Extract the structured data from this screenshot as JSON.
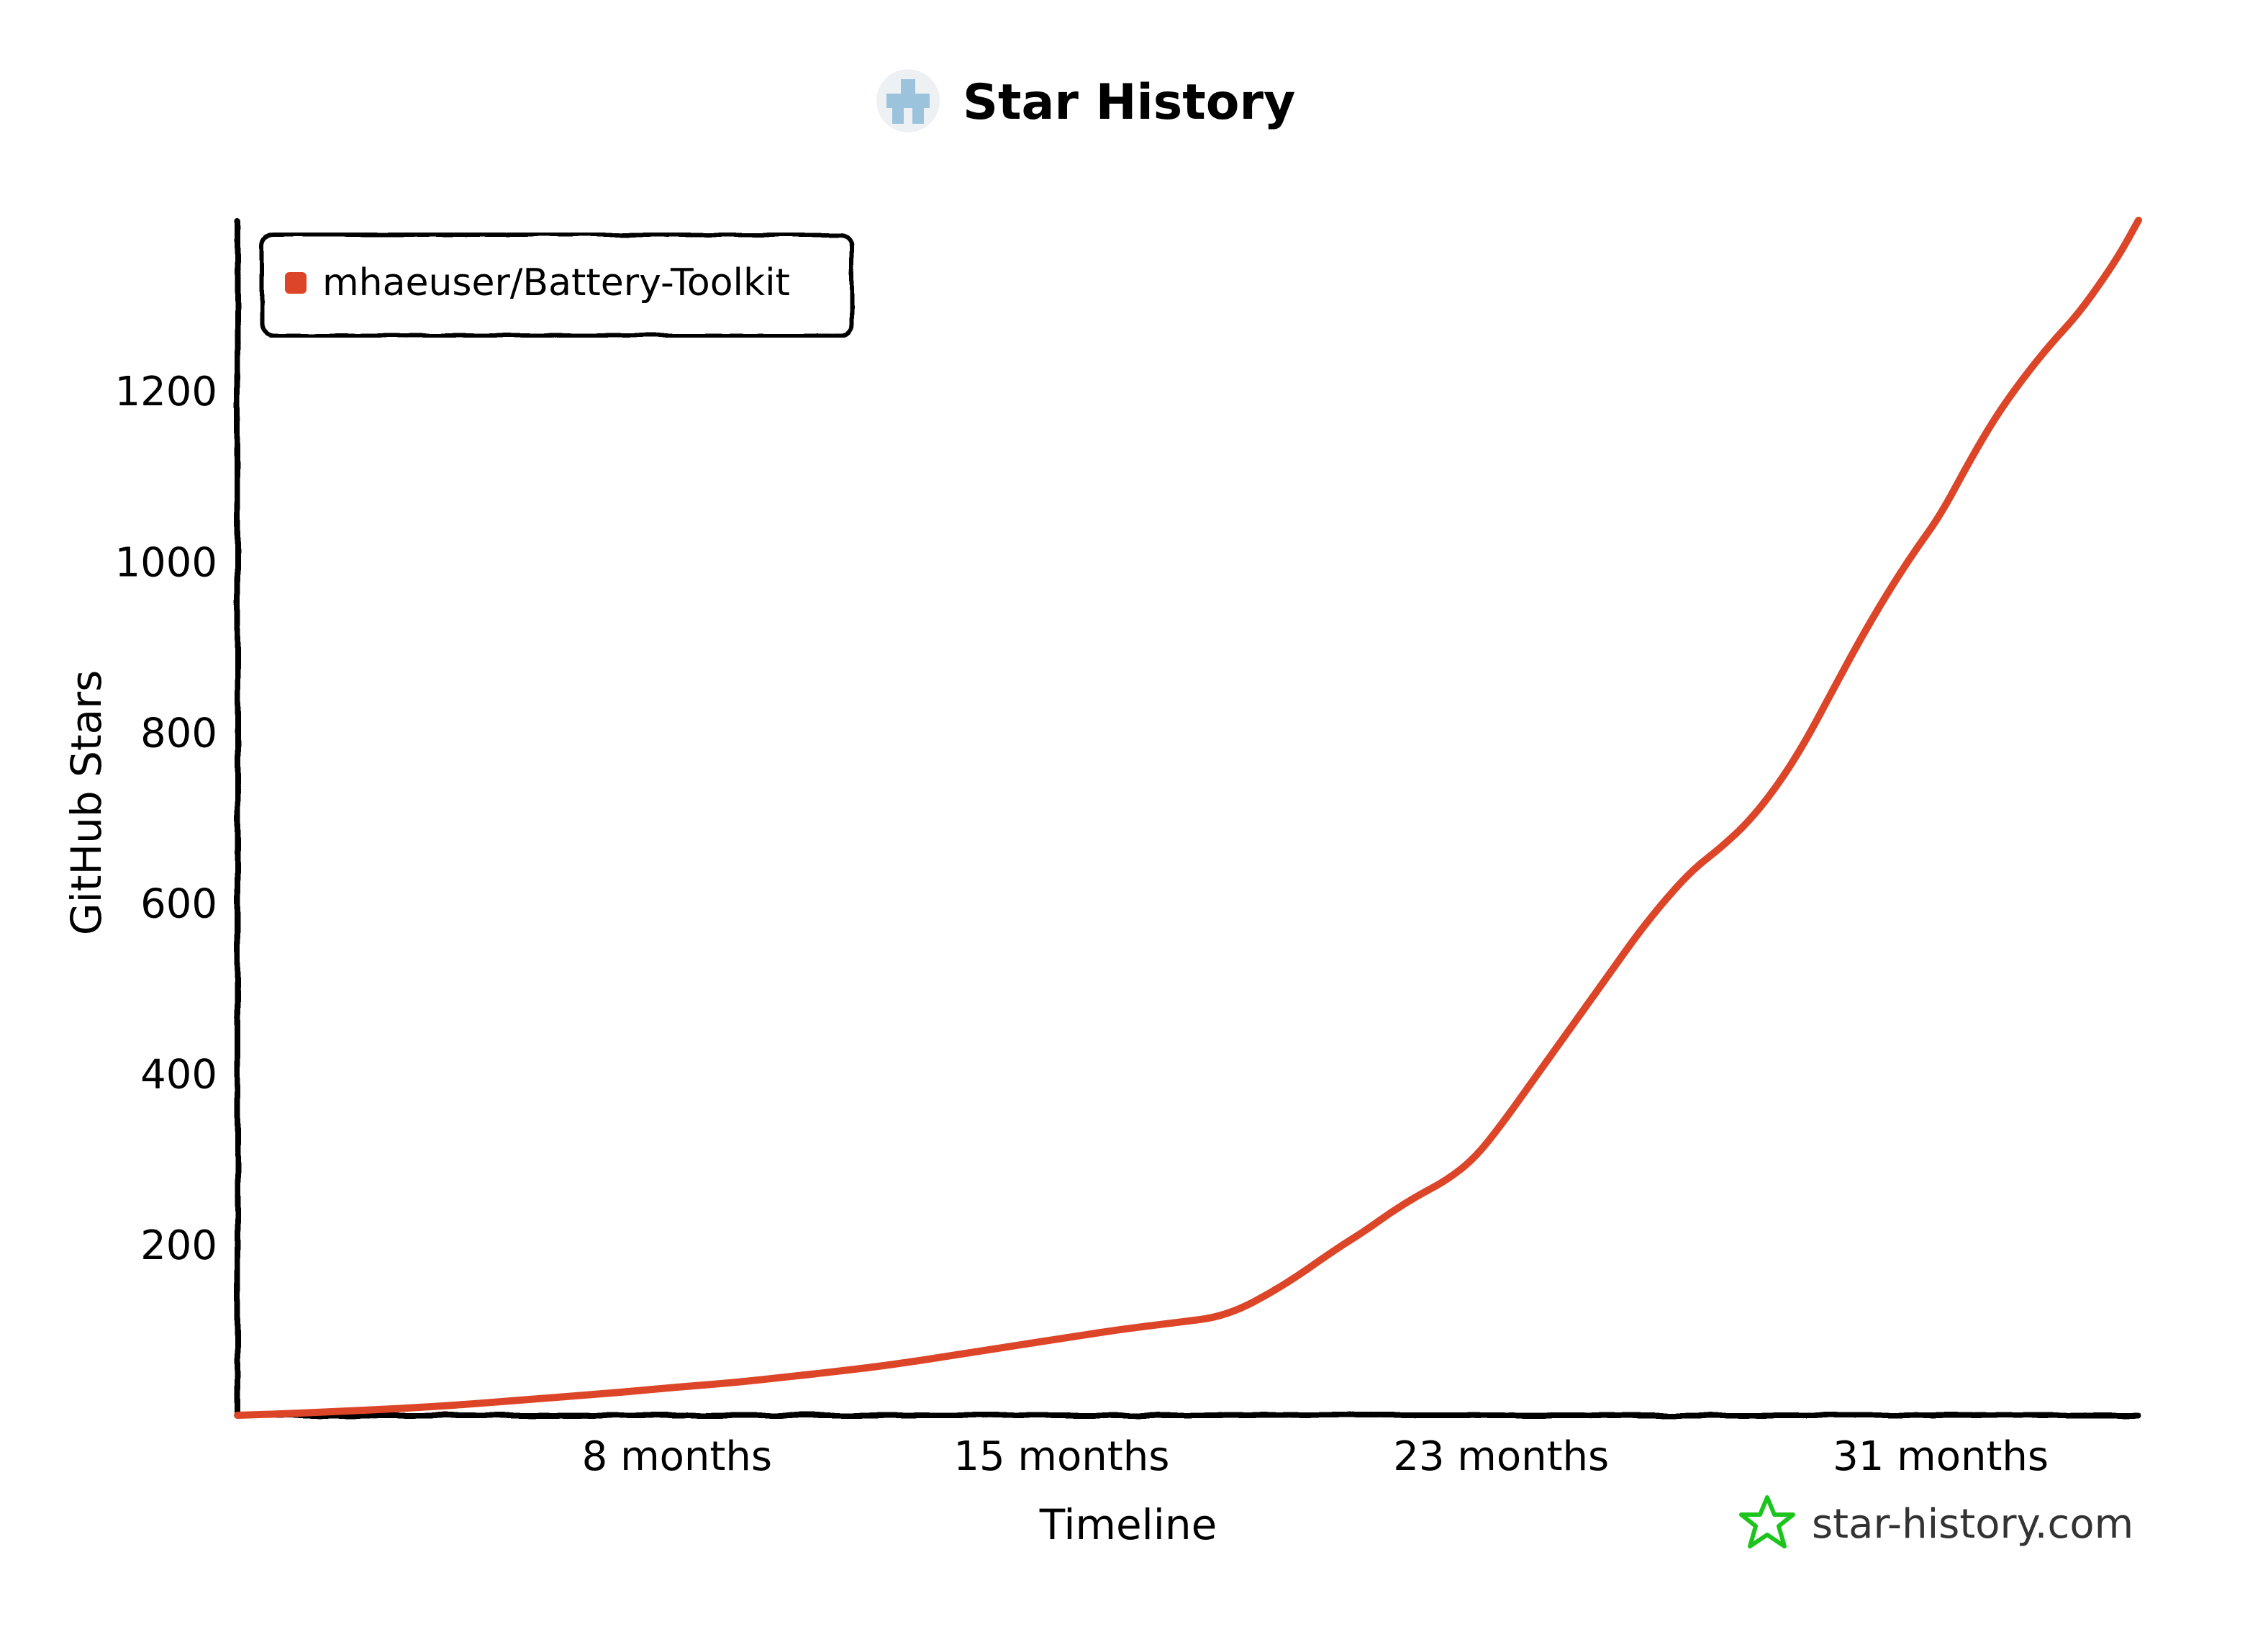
{
  "chart_data": {
    "type": "line",
    "title": "Star History",
    "xlabel": "Timeline",
    "ylabel": "GitHub Stars",
    "x_unit": "months",
    "x_ticks": [
      {
        "value": 8,
        "label": "8 months"
      },
      {
        "value": 15,
        "label": "15 months"
      },
      {
        "value": 23,
        "label": "23 months"
      },
      {
        "value": 31,
        "label": "31 months"
      }
    ],
    "y_ticks": [
      200,
      400,
      600,
      800,
      1000,
      1200
    ],
    "xlim": [
      0,
      34.6
    ],
    "ylim": [
      0,
      1400
    ],
    "grid": false,
    "legend_position": "top-left",
    "series": [
      {
        "name": "mhaeuser/Battery-Toolkit",
        "color": "#dd4528",
        "x": [
          0,
          1,
          2,
          3,
          4,
          5,
          6,
          7,
          8,
          9,
          10,
          11,
          12,
          13,
          14,
          15,
          16,
          17,
          18,
          19,
          20,
          20.5,
          21,
          21.5,
          22,
          22.5,
          23,
          23.5,
          24,
          24.5,
          25,
          25.5,
          26,
          26.5,
          27,
          27.5,
          28,
          28.5,
          29,
          29.5,
          30,
          30.5,
          31,
          31.5,
          32,
          32.5,
          33,
          33.5,
          34,
          34.3,
          34.6
        ],
        "values": [
          0,
          2,
          5,
          8,
          12,
          17,
          22,
          27,
          33,
          38,
          45,
          52,
          60,
          70,
          80,
          90,
          100,
          108,
          116,
          150,
          195,
          215,
          238,
          258,
          275,
          300,
          340,
          385,
          430,
          475,
          520,
          565,
          605,
          640,
          665,
          695,
          735,
          785,
          845,
          905,
          960,
          1010,
          1055,
          1115,
          1170,
          1215,
          1255,
          1290,
          1335,
          1365,
          1400
        ]
      }
    ]
  },
  "watermark": {
    "text": "star-history.com",
    "icon": "star-outline-icon",
    "icon_color": "#1ec41e"
  },
  "logo": {
    "icon": "star-history-logo-icon",
    "color": "#9cc3dc"
  }
}
